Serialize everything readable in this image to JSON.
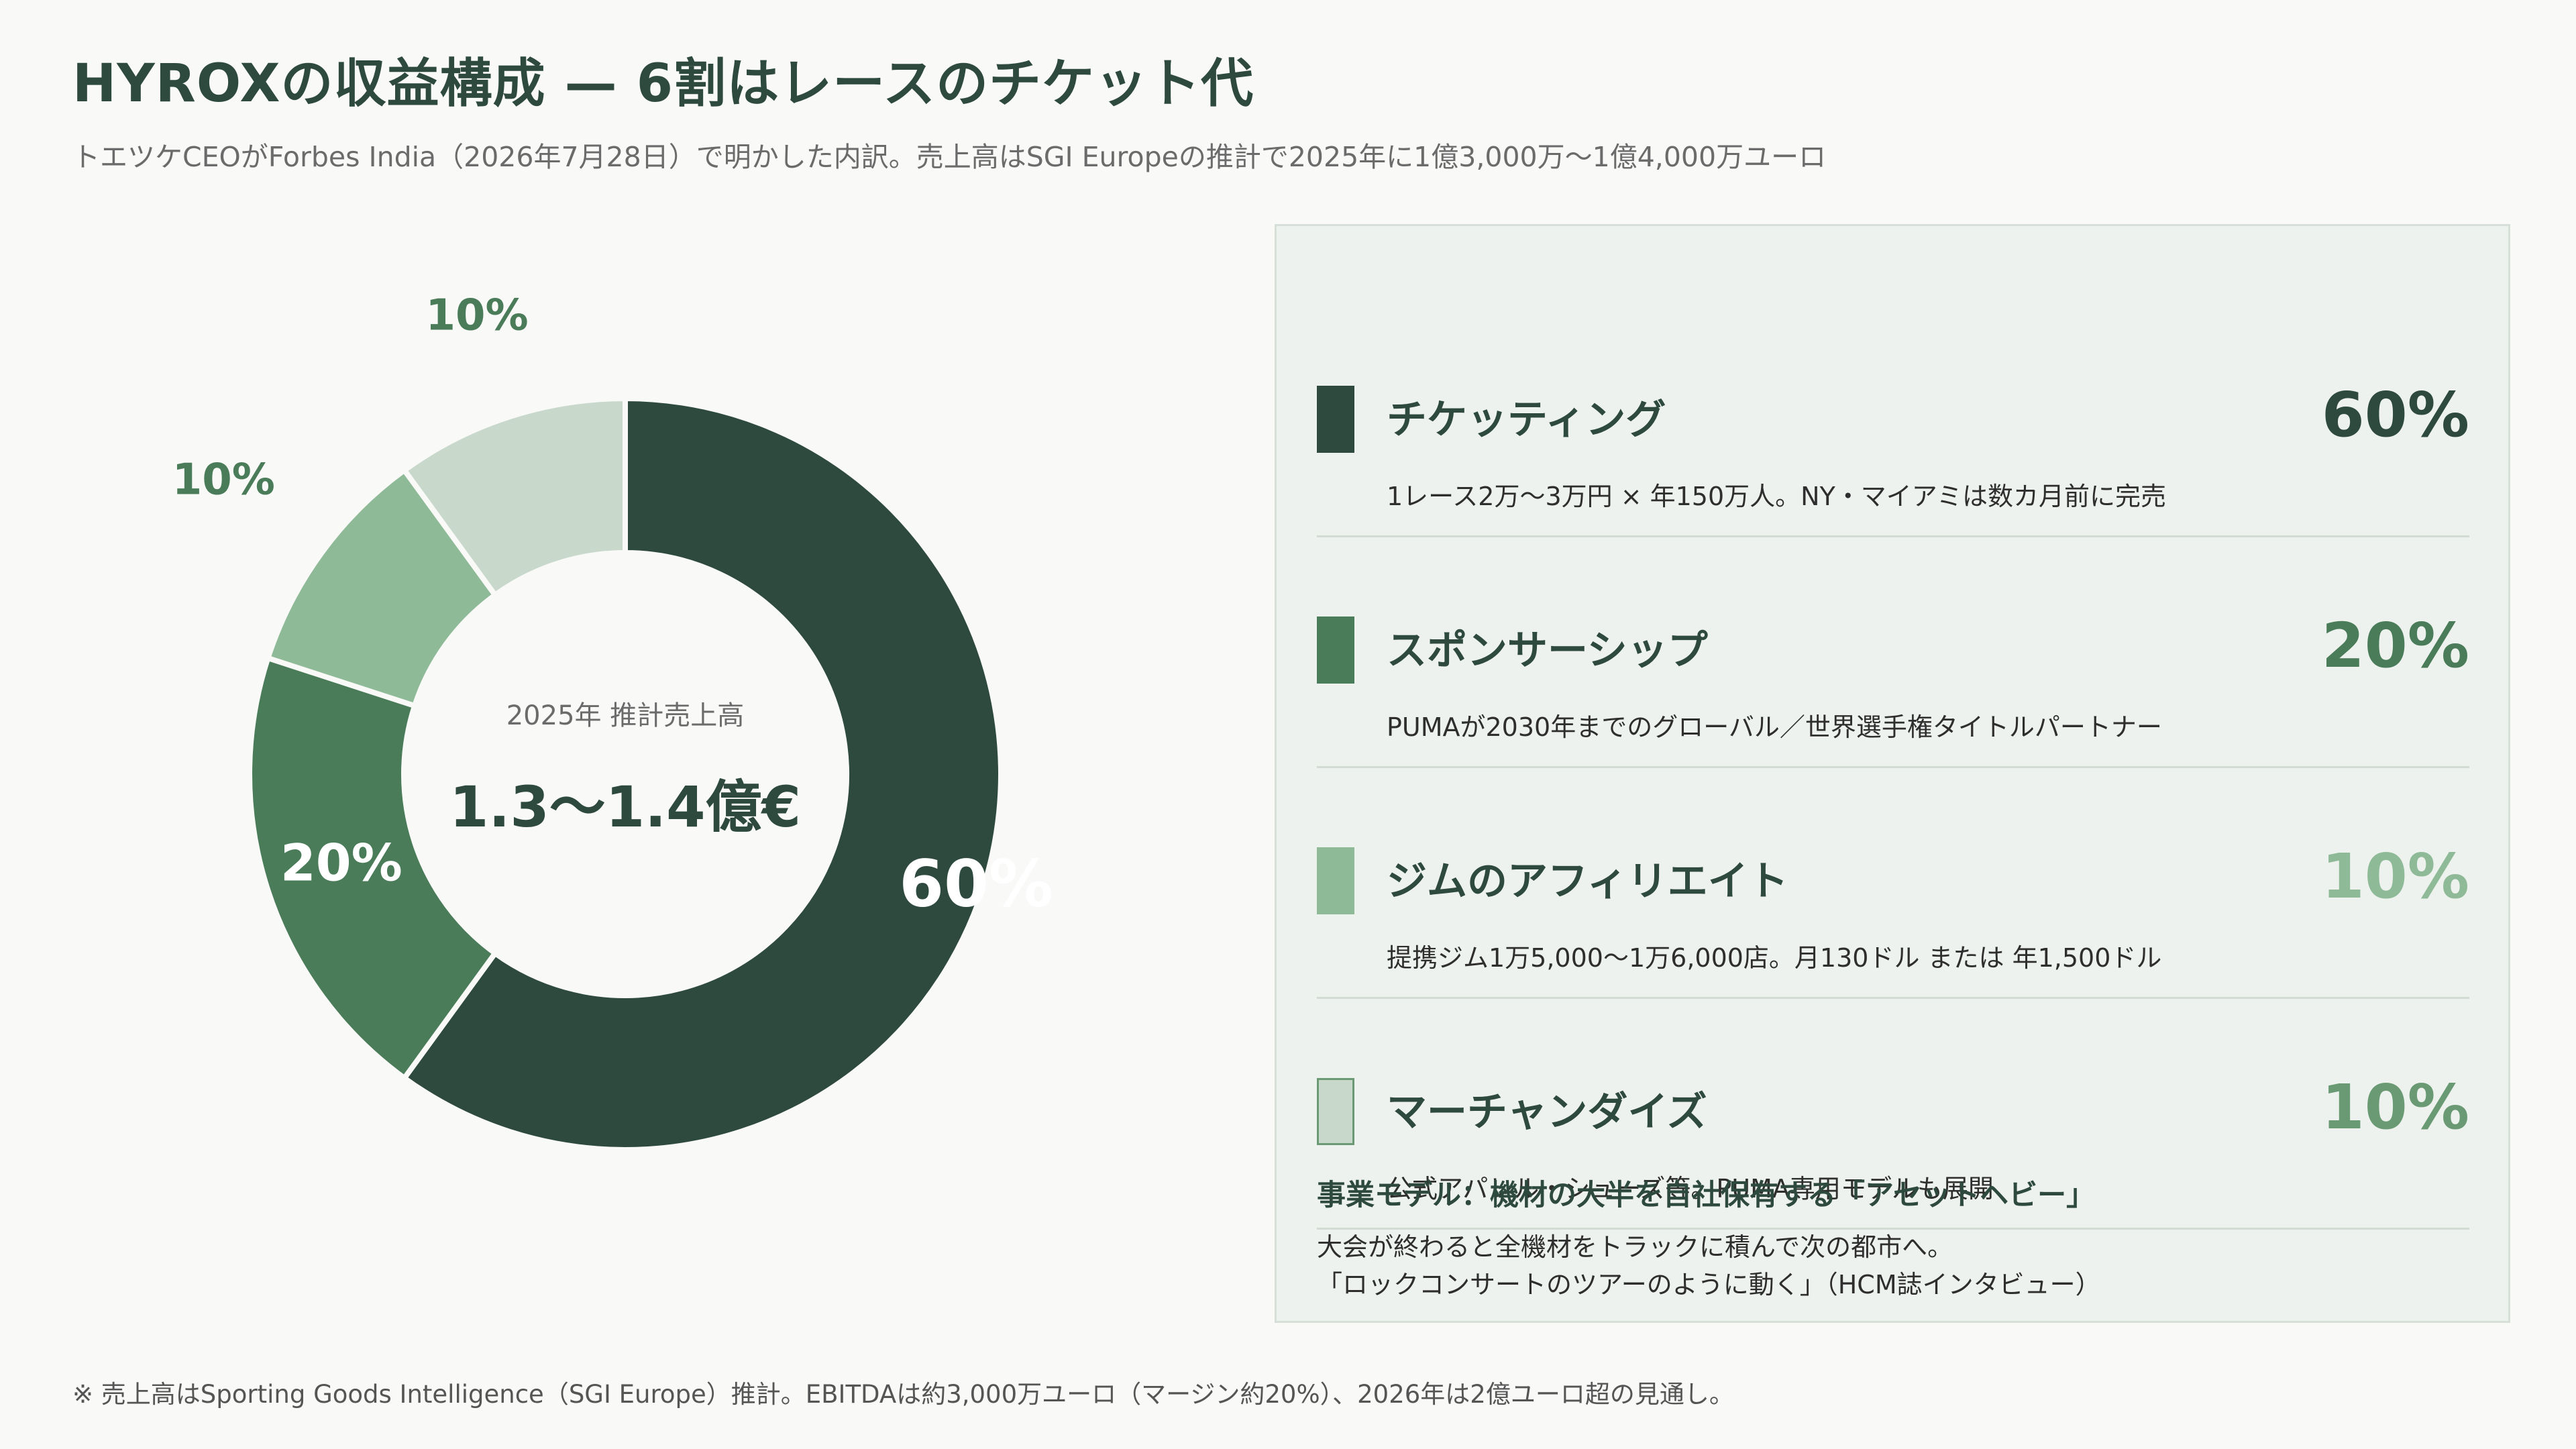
{
  "title": "HYROXの収益構成 — 6割はレースのチケット代",
  "subtitle": "トエツケCEOがForbes India（2026年7月28日）で明かした内訳。売上高はSGI Europeの推計で2025年に1億3,000万〜1億4,000万ユーロ",
  "chart_data": {
    "type": "pie",
    "categories": [
      "チケッティング",
      "スポンサーシップ",
      "ジムのアフィリエイト",
      "マーチャンダイズ"
    ],
    "values": [
      60,
      20,
      10,
      10
    ],
    "data_labels": [
      "60%",
      "20%",
      "10%",
      "10%"
    ],
    "colors": [
      "#2e4a3e",
      "#4a7c59",
      "#8fba98",
      "#c8d9cc"
    ],
    "center_caption": "2025年 推計売上高",
    "center_value": "1.3〜1.4億€"
  },
  "breakdown": [
    {
      "name": "チケッティング",
      "pct": "60%",
      "desc": "1レース2万〜3万円 × 年150万人。NY・マイアミは数カ月前に完売",
      "color": "#2e4a3e",
      "pct_color": "#2e4a3e"
    },
    {
      "name": "スポンサーシップ",
      "pct": "20%",
      "desc": "PUMAが2030年までのグローバル／世界選手権タイトルパートナー",
      "color": "#4a7c59",
      "pct_color": "#4a7c59"
    },
    {
      "name": "ジムのアフィリエイト",
      "pct": "10%",
      "desc": "提携ジム1万5,000〜1万6,000店。月130ドル または 年1,500ドル",
      "color": "#8fba98",
      "pct_color": "#8fba98"
    },
    {
      "name": "マーチャンダイズ",
      "pct": "10%",
      "desc": "公式アパレル・シューズ等。PUMA専用モデルも展開",
      "color": "#c8d9cc",
      "pct_color": "#6a9a74"
    }
  ],
  "model": {
    "title": "事業モデル：機材の大半を自社保有する「アセットヘビー」",
    "line1": "大会が終わると全機材をトラックに積んで次の都市へ。",
    "line2": "「ロックコンサートのツアーのように動く」（HCM誌インタビュー）"
  },
  "footnote": "※ 売上高はSporting Goods Intelligence（SGI Europe）推計。EBITDAは約3,000万ユーロ（マージン約20%）、2026年は2億ユーロ超の見通し。"
}
